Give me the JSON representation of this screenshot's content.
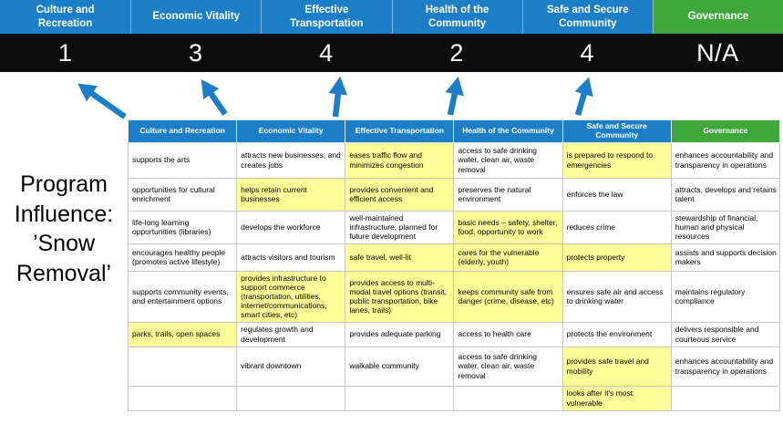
{
  "colors": {
    "pillar_blue": "#1B7EC6",
    "governance_green": "#3FA63C",
    "score_band": "#0D0D0D",
    "highlight_yellow": "#FFFF99",
    "arrow_blue": "#1B7EC6",
    "cell_border": "#C6C6C6"
  },
  "title": "Program\nInfluence:\n’Snow\nRemoval’",
  "scoreboard": {
    "columns": [
      {
        "label": "Culture and Recreation",
        "score": "1",
        "header_color": "#1B7EC6"
      },
      {
        "label": "Economic Vitality",
        "score": "3",
        "header_color": "#1B7EC6"
      },
      {
        "label": "Effective Transportation",
        "score": "4",
        "header_color": "#1B7EC6"
      },
      {
        "label": "Health of the Community",
        "score": "2",
        "header_color": "#1B7EC6"
      },
      {
        "label": "Safe and Secure Community",
        "score": "4",
        "header_color": "#1B7EC6"
      },
      {
        "label": "Governance",
        "score": "N/A",
        "header_color": "#3FA63C"
      }
    ]
  },
  "matrix": {
    "headers": [
      {
        "label": "Culture and Recreation",
        "color": "#1B7EC6"
      },
      {
        "label": "Economic Vitality",
        "color": "#1B7EC6"
      },
      {
        "label": "Effective Transportation",
        "color": "#1B7EC6"
      },
      {
        "label": "Health of the Community",
        "color": "#1B7EC6"
      },
      {
        "label": "Safe and Secure Community",
        "color": "#1B7EC6"
      },
      {
        "label": "Governance",
        "color": "#3FA63C"
      }
    ],
    "rows": [
      [
        {
          "text": "supports the arts",
          "highlight": false
        },
        {
          "text": "attracts new businesses, and creates jobs",
          "highlight": false
        },
        {
          "text": "eases traffic flow and minimizes congestion",
          "highlight": true
        },
        {
          "text": "access to safe drinking water, clean air, waste removal",
          "highlight": false
        },
        {
          "text": "is prepared to respond to emergencies",
          "highlight": true
        },
        {
          "text": "enhances accountability and transparency in operations",
          "highlight": false
        }
      ],
      [
        {
          "text": "opportunities for cultural enrichment",
          "highlight": false
        },
        {
          "text": "helps retain current businesses",
          "highlight": true
        },
        {
          "text": "provides convenient and efficient access",
          "highlight": true
        },
        {
          "text": "preserves the natural environment",
          "highlight": false
        },
        {
          "text": "enforces the law",
          "highlight": false
        },
        {
          "text": "attracts, develops and retains talent",
          "highlight": false
        }
      ],
      [
        {
          "text": "life-long learning opportunities (libraries)",
          "highlight": false
        },
        {
          "text": "develops the workforce",
          "highlight": false
        },
        {
          "text": "well-maintained infrastructure, planned for future development",
          "highlight": false
        },
        {
          "text": "basic needs – safety, shelter, food, opportunity to work",
          "highlight": true
        },
        {
          "text": "reduces crime",
          "highlight": false
        },
        {
          "text": "stewardship of financial, human and physical resources",
          "highlight": false
        }
      ],
      [
        {
          "text": "encourages healthy people (promotes active lifestyle)",
          "highlight": false
        },
        {
          "text": "attracts visitors and tourism",
          "highlight": false
        },
        {
          "text": "safe travel, well-lit",
          "highlight": true
        },
        {
          "text": "cares for the vulnerable (elderly, youth)",
          "highlight": true
        },
        {
          "text": "protects property",
          "highlight": true
        },
        {
          "text": "assists and supports decision makers",
          "highlight": false
        }
      ],
      [
        {
          "text": "supports community events, and entertainment options",
          "highlight": false
        },
        {
          "text": "provides infrastructure to support commerce (transportation, utilities, internet/communications, smart cities, etc)",
          "highlight": true
        },
        {
          "text": "provides access to multi-modal travel options (transit, public transportation, bike lanes, trails)",
          "highlight": true
        },
        {
          "text": "keeps community safe from danger (crime, disease, etc)",
          "highlight": true
        },
        {
          "text": "ensures safe air and access to drinking water",
          "highlight": false
        },
        {
          "text": "maintains regulatory compliance",
          "highlight": false
        }
      ],
      [
        {
          "text": "parks, trails, open spaces",
          "highlight": true
        },
        {
          "text": "regulates growth and development",
          "highlight": false
        },
        {
          "text": "provides adequate parking",
          "highlight": false
        },
        {
          "text": "access to health care",
          "highlight": false
        },
        {
          "text": "protects the environment",
          "highlight": false
        },
        {
          "text": "delivers responsible and courteous service",
          "highlight": false
        }
      ],
      [
        {
          "text": "",
          "highlight": false
        },
        {
          "text": "vibrant downtown",
          "highlight": false
        },
        {
          "text": "walkable community",
          "highlight": false
        },
        {
          "text": "access to safe drinking water, clean air, waste removal",
          "highlight": false
        },
        {
          "text": "provides safe travel and mobility",
          "highlight": true
        },
        {
          "text": "enhances accountability and transparency in operations",
          "highlight": false
        }
      ],
      [
        {
          "text": "",
          "highlight": false
        },
        {
          "text": "",
          "highlight": false
        },
        {
          "text": "",
          "highlight": false
        },
        {
          "text": "",
          "highlight": false
        },
        {
          "text": "looks after it's most vulnerable",
          "highlight": true
        },
        {
          "text": "",
          "highlight": false
        }
      ]
    ]
  }
}
